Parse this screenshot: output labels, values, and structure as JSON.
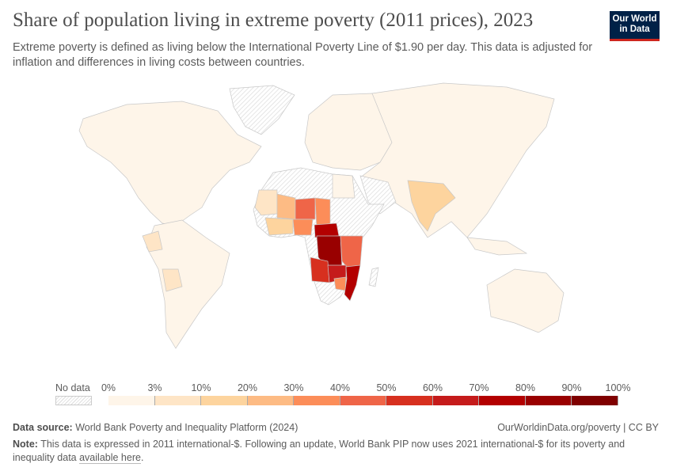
{
  "header": {
    "title": "Share of population living in extreme poverty (2011 prices), 2023",
    "subtitle": "Extreme poverty is defined as living below the International Poverty Line of $1.90 per day. This data is adjusted for inflation and differences in living costs between countries.",
    "logo_line1": "Our World",
    "logo_line2": "in Data"
  },
  "legend": {
    "no_data": "No data",
    "ticks": [
      "0%",
      "3%",
      "10%",
      "20%",
      "30%",
      "40%",
      "50%",
      "60%",
      "70%",
      "80%",
      "90%",
      "100%"
    ],
    "colors": [
      "#fef5e9",
      "#fee5c6",
      "#fdd49e",
      "#fdbb84",
      "#fc8d59",
      "#ef6548",
      "#d7301f",
      "#c51b1b",
      "#b30000",
      "#990000",
      "#7f0000"
    ]
  },
  "footer": {
    "source_label": "Data source:",
    "source_text": "World Bank Poverty and Inequality Platform (2024)",
    "credit": "OurWorldinData.org/poverty | CC BY",
    "note_label": "Note:",
    "note_text": "This data is expressed in 2011 international-$. Following an update, World Bank PIP now uses 2021 international-$ for its poverty and inequality data",
    "note_link": "available here",
    "note_end": "."
  }
}
